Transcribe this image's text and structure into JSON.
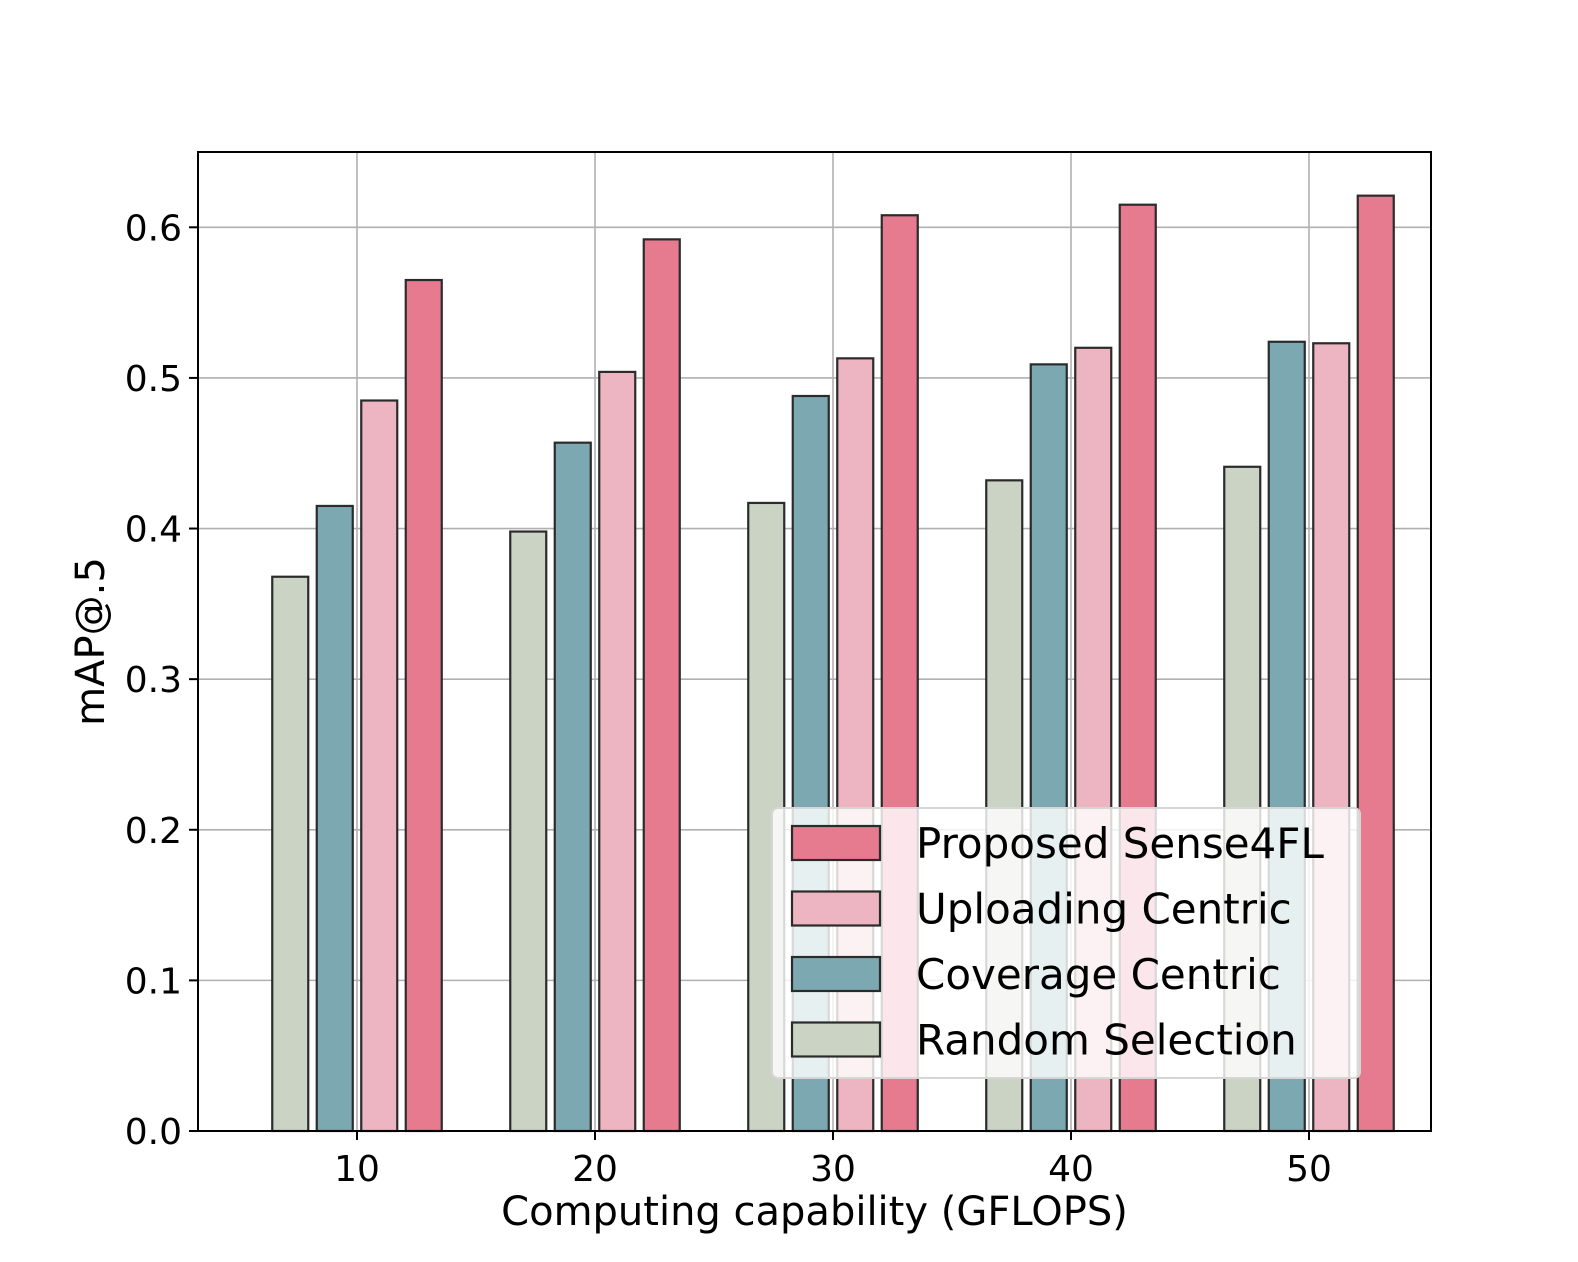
{
  "chart_data": {
    "type": "bar",
    "title": "",
    "xlabel": "Computing capability (GFLOPS)",
    "ylabel": "mAP@.5",
    "categories": [
      "10",
      "20",
      "30",
      "40",
      "50"
    ],
    "ylim": [
      0,
      0.65
    ],
    "yticks": [
      "0.0",
      "0.1",
      "0.2",
      "0.3",
      "0.4",
      "0.5",
      "0.6"
    ],
    "grid": true,
    "legend_position": "lower-right",
    "series": [
      {
        "name": "Random Selection",
        "color": "#cbd3c4",
        "values": [
          0.368,
          0.398,
          0.417,
          0.432,
          0.441
        ]
      },
      {
        "name": "Coverage Centric",
        "color": "#7ca9b1",
        "values": [
          0.415,
          0.457,
          0.488,
          0.509,
          0.524
        ]
      },
      {
        "name": "Uploading Centric",
        "color": "#edb5c2",
        "values": [
          0.485,
          0.504,
          0.513,
          0.52,
          0.523
        ]
      },
      {
        "name": "Proposed Sense4FL",
        "color": "#e67a8e",
        "values": [
          0.565,
          0.592,
          0.608,
          0.615,
          0.621
        ]
      }
    ],
    "legend_order": [
      "Proposed Sense4FL",
      "Uploading Centric",
      "Coverage Centric",
      "Random Selection"
    ]
  }
}
